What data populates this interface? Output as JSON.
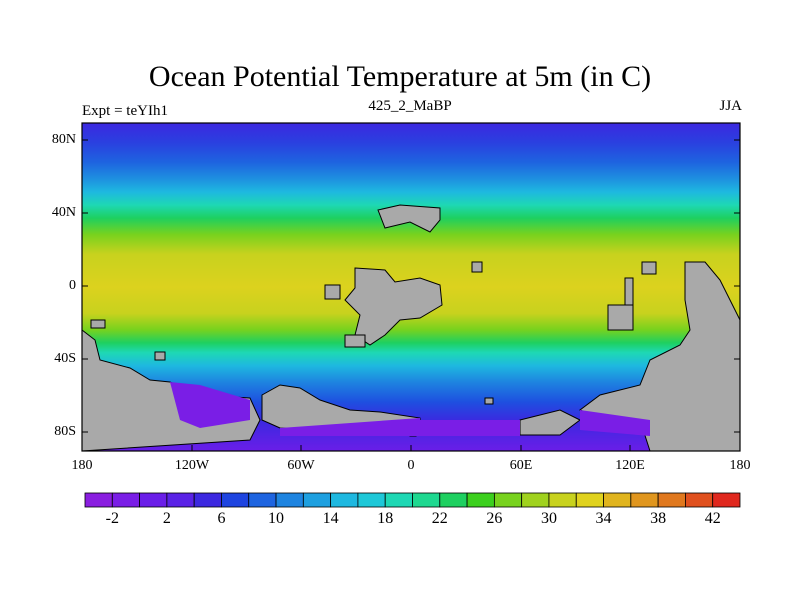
{
  "title": "Ocean Potential Temperature at 5m (in C)",
  "subtitle_left": "Expt = teYIh1",
  "subtitle_center": "425_2_MaBP",
  "subtitle_right": "JJA",
  "lat_labels": [
    "80N",
    "40N",
    "0",
    "40S",
    "80S"
  ],
  "lon_labels": [
    "180",
    "120W",
    "60W",
    "0",
    "60E",
    "120E",
    "180"
  ],
  "colorbar": {
    "labels": [
      "-2",
      "2",
      "6",
      "10",
      "14",
      "18",
      "22",
      "26",
      "30",
      "34",
      "38",
      "42"
    ],
    "colors": [
      "#8a1ee0",
      "#7a1ee6",
      "#6a1ee8",
      "#5a22e6",
      "#3c28e0",
      "#1e44e0",
      "#1e64e0",
      "#1e84e0",
      "#1ea0e0",
      "#1eb8e0",
      "#1ec8d8",
      "#1ed8b4",
      "#1ed890",
      "#1ed060",
      "#3cd01e",
      "#78d21e",
      "#a0d21e",
      "#c8d21e",
      "#e0d21e",
      "#e0b41e",
      "#e0961e",
      "#e0781e",
      "#e0501e",
      "#e0281e"
    ]
  },
  "land_color": "#a9a9a9"
}
